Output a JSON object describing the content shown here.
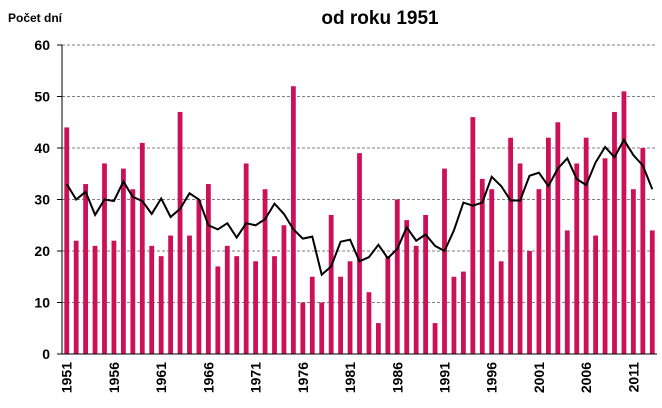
{
  "chart_data": {
    "type": "bar",
    "title": "od roku 1951",
    "y_label": "Počet dní",
    "categories": [
      "1951",
      null,
      null,
      null,
      null,
      "1956",
      null,
      null,
      null,
      null,
      "1961",
      null,
      null,
      null,
      null,
      "1966",
      null,
      null,
      null,
      null,
      "1971",
      null,
      null,
      null,
      null,
      "1976",
      null,
      null,
      null,
      null,
      "1981",
      null,
      null,
      null,
      null,
      "1986",
      null,
      null,
      null,
      null,
      "1991",
      null,
      null,
      null,
      null,
      "1996",
      null,
      null,
      null,
      null,
      "2001",
      null,
      null,
      null,
      null,
      "2006",
      null,
      null,
      null,
      null,
      "2011",
      null,
      null
    ],
    "series": [
      {
        "color": "#cc1159",
        "values": [
          44,
          22,
          33,
          21,
          37,
          22,
          36,
          32,
          41,
          21,
          19,
          23,
          47,
          23,
          30,
          33,
          17,
          21,
          19,
          37,
          18,
          32,
          19,
          25,
          52,
          10,
          15,
          10,
          27,
          15,
          18,
          39,
          12,
          6,
          19,
          30,
          26,
          21,
          27,
          6,
          36,
          15,
          16,
          46,
          34,
          32,
          18,
          42,
          37,
          20,
          32,
          42,
          45,
          24,
          37,
          42,
          23,
          38,
          47,
          51,
          32,
          40,
          24
        ]
      },
      {
        "type": "line",
        "color": "#000000",
        "values": [
          33,
          30,
          31.5,
          27,
          30,
          29.7,
          33.5,
          30.5,
          29.7,
          27.2,
          30.2,
          26.6,
          28.2,
          31.2,
          30,
          25,
          24.2,
          25.4,
          22.6,
          25.4,
          25,
          26.2,
          29.2,
          27.2,
          24.2,
          22.4,
          22.8,
          15.4,
          17,
          21.8,
          22.2,
          18,
          18.8,
          21.2,
          18.6,
          20.4,
          24.6,
          22,
          23.2,
          21,
          20,
          24,
          29.4,
          28.8,
          29.4,
          34.4,
          32.6,
          29.8,
          29.8,
          34.6,
          35.2,
          32.6,
          36,
          38,
          34,
          32.8,
          37.2,
          40.2,
          38.2,
          41.6,
          38.6,
          36.6,
          32
        ]
      }
    ],
    "ylim": [
      0,
      60
    ],
    "yticks": [
      0,
      10,
      20,
      30,
      40,
      50,
      60
    ],
    "grid": true
  }
}
